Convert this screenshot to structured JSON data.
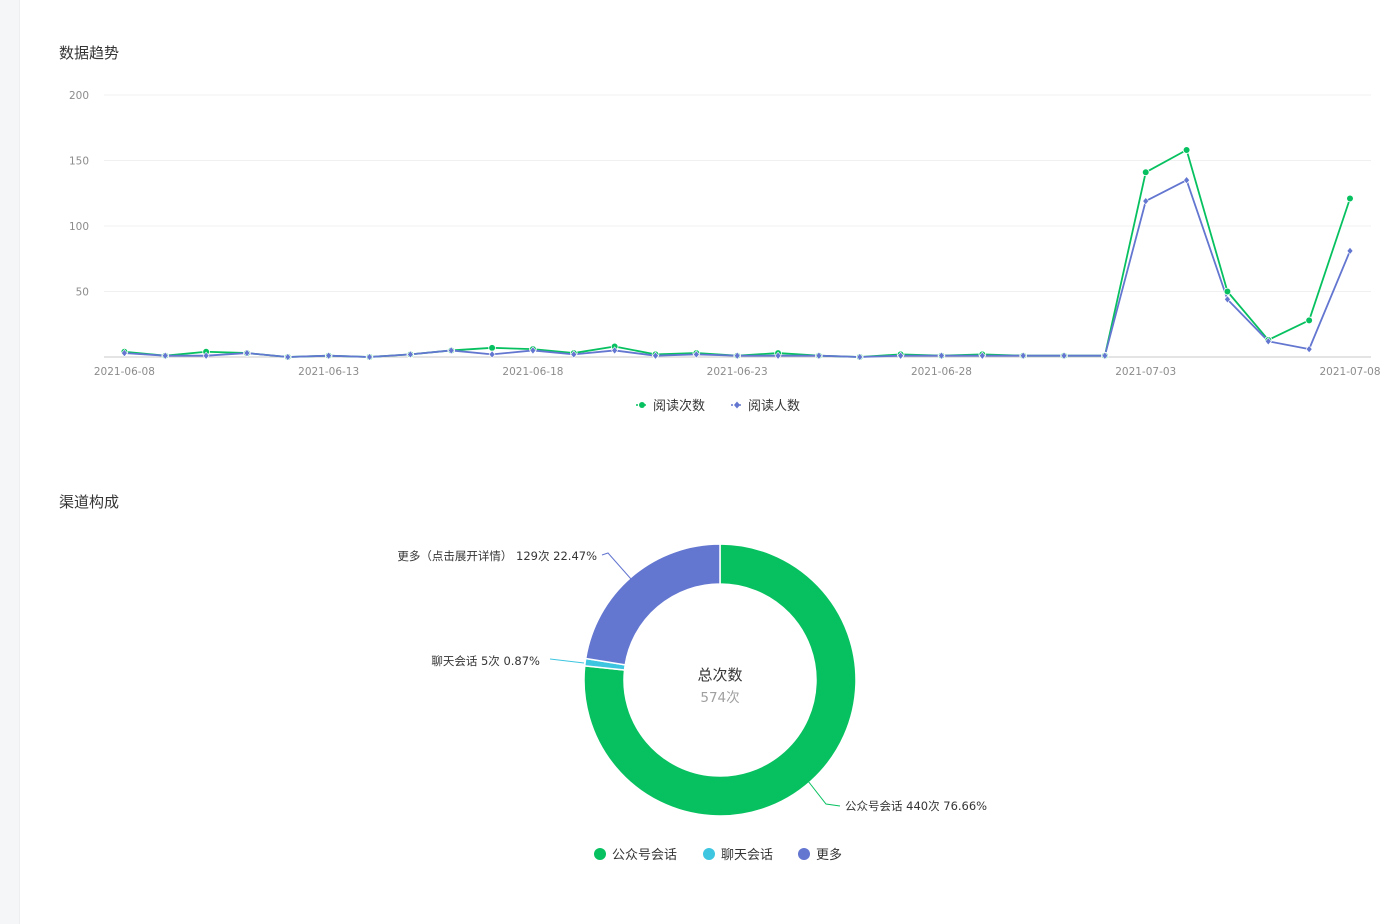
{
  "sections": {
    "trend_title": "数据趋势",
    "channel_title": "渠道构成"
  },
  "colors": {
    "green": "#07c160",
    "blue": "#6376d0",
    "cyan": "#3ec6e0",
    "grid": "#f0f0f0",
    "axis": "#c9c9c9"
  },
  "chart_data": [
    {
      "type": "line",
      "ylim": [
        0,
        200
      ],
      "yticks": [
        50,
        100,
        150,
        200
      ],
      "x": [
        "2021-06-08",
        "2021-06-09",
        "2021-06-10",
        "2021-06-11",
        "2021-06-12",
        "2021-06-13",
        "2021-06-14",
        "2021-06-15",
        "2021-06-16",
        "2021-06-17",
        "2021-06-18",
        "2021-06-19",
        "2021-06-20",
        "2021-06-21",
        "2021-06-22",
        "2021-06-23",
        "2021-06-24",
        "2021-06-25",
        "2021-06-26",
        "2021-06-27",
        "2021-06-28",
        "2021-06-29",
        "2021-06-30",
        "2021-07-01",
        "2021-07-02",
        "2021-07-03",
        "2021-07-04",
        "2021-07-05",
        "2021-07-06",
        "2021-07-07",
        "2021-07-08"
      ],
      "xticks": [
        "2021-06-08",
        "2021-06-13",
        "2021-06-18",
        "2021-06-23",
        "2021-06-28",
        "2021-07-03",
        "2021-07-08"
      ],
      "series": [
        {
          "name": "阅读次数",
          "color": "#07c160",
          "marker": "circle",
          "values": [
            4,
            1,
            4,
            3,
            0,
            1,
            0,
            2,
            5,
            7,
            6,
            3,
            8,
            2,
            3,
            1,
            3,
            1,
            0,
            2,
            1,
            2,
            1,
            1,
            1,
            141,
            158,
            50,
            13,
            28,
            121
          ]
        },
        {
          "name": "阅读人数",
          "color": "#6376d0",
          "marker": "diamond",
          "values": [
            3,
            1,
            1,
            3,
            0,
            1,
            0,
            2,
            5,
            2,
            5,
            2,
            5,
            1,
            2,
            1,
            1,
            1,
            0,
            1,
            1,
            1,
            1,
            1,
            1,
            119,
            135,
            44,
            12,
            6,
            81
          ]
        }
      ],
      "legend_position": "bottom",
      "grid": true
    },
    {
      "type": "pie",
      "donut": true,
      "center_title": "总次数",
      "center_value": "574次",
      "slices": [
        {
          "name": "公众号会话",
          "value": 440,
          "color": "#07c160",
          "label": "公众号会话 440次 76.66%"
        },
        {
          "name": "聊天会话",
          "value": 5,
          "color": "#3ec6e0",
          "label": "聊天会话 5次 0.87%"
        },
        {
          "name": "更多",
          "value": 129,
          "color": "#6376d0",
          "label": "更多（点击展开详情） 129次 22.47%"
        }
      ],
      "legend_position": "bottom"
    }
  ]
}
